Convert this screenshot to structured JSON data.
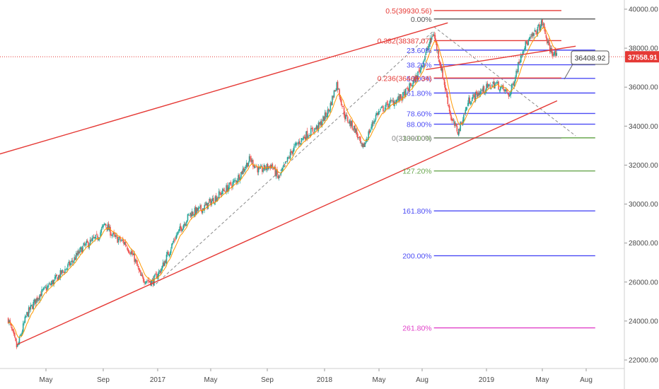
{
  "chart_data": {
    "type": "candlestick",
    "title": "",
    "ylim": [
      21500,
      40400
    ],
    "y_ticks": [
      "40000.00",
      "38000.00",
      "36000.00",
      "34000.00",
      "32000.00",
      "30000.00",
      "28000.00",
      "26000.00",
      "24000.00",
      "22000.00"
    ],
    "y_tick_values": [
      40000,
      38000,
      36000,
      34000,
      32000,
      30000,
      28000,
      26000,
      24000,
      22000
    ],
    "x_ticks": [
      "May",
      "Sep",
      "2017",
      "May",
      "Sep",
      "2018",
      "May",
      "Aug",
      "2019",
      "May",
      "Aug"
    ],
    "x_tick_dates": [
      "2016-05-01",
      "2016-09-01",
      "2017-01-01",
      "2017-05-01",
      "2017-09-01",
      "2018-01-01",
      "2018-05-01",
      "2018-08-01",
      "2019-01-01",
      "2019-05-01",
      "2019-08-01"
    ],
    "last_price": {
      "label": "37558.91",
      "value": 37558.91
    },
    "callout": {
      "label": "36408.92",
      "value": 36408.92
    },
    "price_path": [
      [
        "2016-02-10",
        24100
      ],
      [
        "2016-02-29",
        22600
      ],
      [
        "2016-03-20",
        24300
      ],
      [
        "2016-04-15",
        25300
      ],
      [
        "2016-05-20",
        26100
      ],
      [
        "2016-06-25",
        27000
      ],
      [
        "2016-07-20",
        27800
      ],
      [
        "2016-08-20",
        28300
      ],
      [
        "2016-09-05",
        29000
      ],
      [
        "2016-09-25",
        28300
      ],
      [
        "2016-10-20",
        28000
      ],
      [
        "2016-11-10",
        27200
      ],
      [
        "2016-11-25",
        26200
      ],
      [
        "2016-12-20",
        26000
      ],
      [
        "2017-01-10",
        26700
      ],
      [
        "2017-02-10",
        28300
      ],
      [
        "2017-03-15",
        29500
      ],
      [
        "2017-04-15",
        29800
      ],
      [
        "2017-05-20",
        30500
      ],
      [
        "2017-06-25",
        31200
      ],
      [
        "2017-07-25",
        32300
      ],
      [
        "2017-08-15",
        31700
      ],
      [
        "2017-09-10",
        32000
      ],
      [
        "2017-09-25",
        31300
      ],
      [
        "2017-10-25",
        32800
      ],
      [
        "2017-11-20",
        33500
      ],
      [
        "2017-12-20",
        34000
      ],
      [
        "2018-01-10",
        34800
      ],
      [
        "2018-01-28",
        36200
      ],
      [
        "2018-02-15",
        34500
      ],
      [
        "2018-03-10",
        33800
      ],
      [
        "2018-03-25",
        32800
      ],
      [
        "2018-04-25",
        34600
      ],
      [
        "2018-05-20",
        35100
      ],
      [
        "2018-06-20",
        35500
      ],
      [
        "2018-07-20",
        36500
      ],
      [
        "2018-08-28",
        38800
      ],
      [
        "2018-09-20",
        36500
      ],
      [
        "2018-10-10",
        34300
      ],
      [
        "2018-10-26",
        33700
      ],
      [
        "2018-11-20",
        35300
      ],
      [
        "2018-12-20",
        35800
      ],
      [
        "2019-01-20",
        36200
      ],
      [
        "2019-02-20",
        35600
      ],
      [
        "2019-03-20",
        38000
      ],
      [
        "2019-04-10",
        38600
      ],
      [
        "2019-05-01",
        39300
      ],
      [
        "2019-05-15",
        38000
      ],
      [
        "2019-06-01",
        37560
      ]
    ],
    "fibonacci_retracement": {
      "start": "2018-08-29",
      "end": "2019-08-20",
      "levels": [
        {
          "label": "0.00%",
          "value": 39500,
          "color": "#555555"
        },
        {
          "label": "23.60%",
          "value": 37900,
          "color": "#4c4cf5"
        },
        {
          "label": "38.20%",
          "value": 37150,
          "color": "#4c4cf5"
        },
        {
          "label": "50.00%",
          "value": 36450,
          "color": "#4c4cf5"
        },
        {
          "label": "61.80%",
          "value": 35700,
          "color": "#4c4cf5"
        },
        {
          "label": "78.60%",
          "value": 34650,
          "color": "#4c4cf5"
        },
        {
          "label": "88.00%",
          "value": 34100,
          "color": "#4c4cf5"
        },
        {
          "label": "100.00%",
          "value": 33400,
          "color": "#6aa84f"
        },
        {
          "label": "127.20%",
          "value": 31700,
          "color": "#6aa84f"
        },
        {
          "label": "161.80%",
          "value": 29650,
          "color": "#4c4cf5"
        },
        {
          "label": "200.00%",
          "value": 27350,
          "color": "#4c4cf5"
        },
        {
          "label": "261.80%",
          "value": 23650,
          "color": "#e040c8"
        }
      ]
    },
    "fibonacci_extension": {
      "start": "2018-08-29",
      "end": "2019-06-10",
      "levels": [
        {
          "label": "0.5(39930.56)",
          "value": 39930.56,
          "color": "#e53935"
        },
        {
          "label": "0.382(38387.07)",
          "value": 38387.07,
          "color": "#e53935"
        },
        {
          "label": "0.236(36469.34)",
          "value": 36469.34,
          "color": "#e53935"
        },
        {
          "label": "0(33390.00)",
          "value": 33390.0,
          "color": "#888888"
        }
      ]
    },
    "trendlines": [
      {
        "name": "upper-channel",
        "from": [
          "2015-12-01",
          32200
        ],
        "to": [
          "2018-10-01",
          39300
        ],
        "color": "#e53935"
      },
      {
        "name": "lower-channel",
        "from": [
          "2016-02-29",
          22800
        ],
        "to": [
          "2019-06-01",
          35300
        ],
        "color": "#e53935"
      },
      {
        "name": "mid-trend",
        "from": [
          "2018-08-10",
          36900
        ],
        "to": [
          "2019-07-10",
          38100
        ],
        "color": "#e53935"
      }
    ],
    "dashed_paths": [
      {
        "name": "rise-diagonal",
        "from": [
          "2016-12-28",
          25900
        ],
        "to": [
          "2018-08-29",
          38900
        ]
      },
      {
        "name": "fall-diagonal",
        "from": [
          "2018-08-29",
          39100
        ],
        "to": [
          "2019-07-10",
          33500
        ]
      }
    ],
    "grid": false,
    "colors": {
      "up": "#26a69a",
      "down": "#ef5350",
      "ema": "#ff9800"
    }
  }
}
